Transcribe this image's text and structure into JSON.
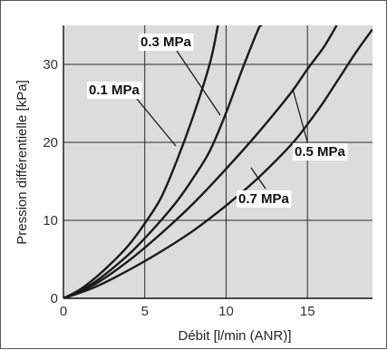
{
  "chart_data": {
    "type": "line",
    "xlabel": "Débit [l/min (ANR)]",
    "ylabel": "Pression différentielle [kPa]",
    "xlim": [
      0,
      19
    ],
    "ylim": [
      0,
      35
    ],
    "x_ticks": [
      "0",
      "5",
      "10",
      "15"
    ],
    "y_ticks": [
      "0",
      "10",
      "20",
      "30"
    ],
    "x_tick_values": [
      0,
      5,
      10,
      15
    ],
    "y_tick_values": [
      0,
      10,
      20,
      30
    ],
    "grid": true,
    "plot_background": "#dcdcdc",
    "line_color": "#1a1a1a",
    "series": [
      {
        "name": "0.1 MPa",
        "points": [
          [
            0,
            0
          ],
          [
            1,
            1.1
          ],
          [
            2,
            2.7
          ],
          [
            3,
            4.6
          ],
          [
            4,
            6.8
          ],
          [
            5,
            9.6
          ],
          [
            6,
            12.9
          ],
          [
            7,
            17.8
          ],
          [
            8,
            23.5
          ],
          [
            9,
            30.1
          ],
          [
            9.5,
            35
          ]
        ]
      },
      {
        "name": "0.3 MPa",
        "points": [
          [
            0,
            0
          ],
          [
            1,
            0.9
          ],
          [
            2,
            2.2
          ],
          [
            3,
            3.8
          ],
          [
            4,
            5.6
          ],
          [
            5,
            7.7
          ],
          [
            6,
            10.0
          ],
          [
            7,
            12.5
          ],
          [
            8,
            15.5
          ],
          [
            9,
            18.9
          ],
          [
            10,
            23.8
          ],
          [
            11,
            29.4
          ],
          [
            12,
            34.6
          ],
          [
            12.2,
            35
          ]
        ]
      },
      {
        "name": "0.5 MPa",
        "points": [
          [
            0,
            0
          ],
          [
            2,
            1.9
          ],
          [
            4,
            4.8
          ],
          [
            6,
            8.3
          ],
          [
            8,
            12.2
          ],
          [
            10,
            16.6
          ],
          [
            12,
            21.3
          ],
          [
            14,
            26.4
          ],
          [
            15,
            29.4
          ],
          [
            16,
            32.2
          ],
          [
            16.8,
            35
          ]
        ]
      },
      {
        "name": "0.7 MPa",
        "points": [
          [
            0,
            0
          ],
          [
            2,
            1.5
          ],
          [
            4,
            3.6
          ],
          [
            6,
            6.0
          ],
          [
            8,
            8.7
          ],
          [
            10,
            11.9
          ],
          [
            12,
            15.5
          ],
          [
            14,
            19.7
          ],
          [
            15,
            22.3
          ],
          [
            16,
            25.2
          ],
          [
            17,
            28.4
          ],
          [
            18,
            31.6
          ],
          [
            19,
            34.5
          ]
        ]
      }
    ],
    "annotations": [
      "0.1 MPa",
      "0.3 MPa",
      "0.5 MPa",
      "0.7 MPa"
    ]
  }
}
